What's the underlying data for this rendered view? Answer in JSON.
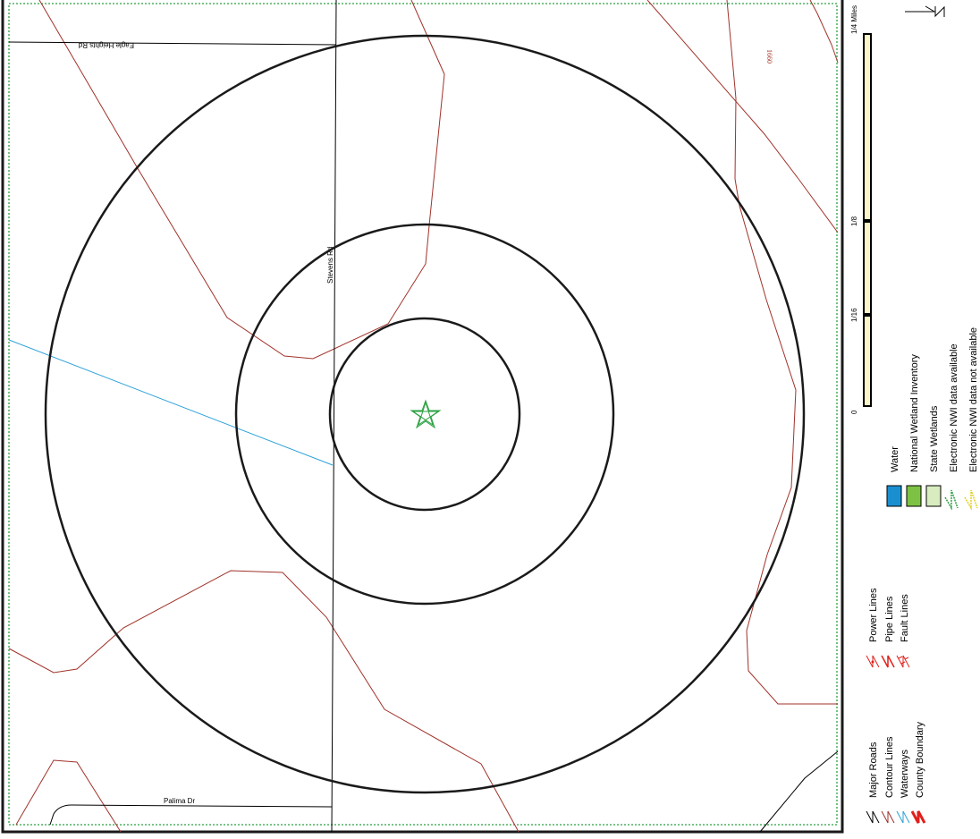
{
  "map": {
    "roads": {
      "eagle_heights": "Eagle Heights Rd",
      "stevens": "Stevens Rd",
      "palima": "Palima Dr"
    },
    "contour_label": "1660",
    "site_marker": "star-icon"
  },
  "scale_bar": {
    "labels": [
      "0",
      "1/16",
      "1/8",
      "1/4 Miles"
    ]
  },
  "legend": {
    "roads_group": [
      {
        "label": "Major Roads",
        "icon": "road-line-icon",
        "color": "#000000"
      },
      {
        "label": "Contour Lines",
        "icon": "contour-line-icon",
        "color": "#a0322a"
      },
      {
        "label": "Waterways",
        "icon": "waterway-line-icon",
        "color": "#2aa0d8"
      },
      {
        "label": "County Boundary",
        "icon": "county-boundary-icon",
        "color": "#e0201c"
      }
    ],
    "utility_group": [
      {
        "label": "Power Lines",
        "icon": "power-line-icon",
        "color": "#e0201c"
      },
      {
        "label": "Pipe Lines",
        "icon": "pipe-line-icon",
        "color": "#e0201c"
      },
      {
        "label": "Fault Lines",
        "icon": "fault-line-icon",
        "color": "#e0201c"
      }
    ],
    "water_group": [
      {
        "label": "Water",
        "icon": "water-swatch",
        "color": "#1a8fd0"
      },
      {
        "label": "National Wetland Inventory",
        "icon": "nwi-swatch",
        "color": "#7dc242"
      },
      {
        "label": "State Wetlands",
        "icon": "state-wetlands-swatch",
        "color": "#d8ecc0"
      },
      {
        "label": "Electronic NWI data available",
        "icon": "nwi-available-icon",
        "color": "#2aa040"
      },
      {
        "label": "Electronic NWI data not available",
        "icon": "nwi-not-available-icon",
        "color": "#e0d020"
      }
    ]
  }
}
